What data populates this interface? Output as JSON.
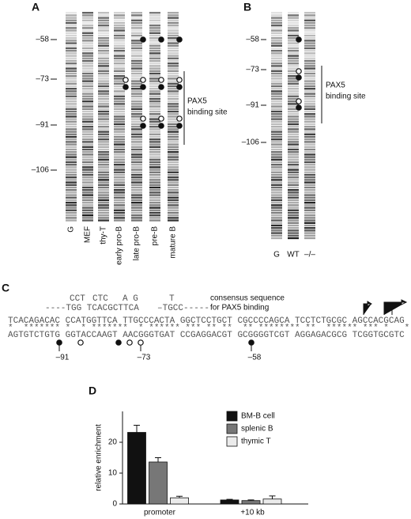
{
  "panel_a": {
    "label": "A",
    "markers": [
      "–58",
      "–73",
      "–91",
      "–106"
    ],
    "lanes": [
      "G",
      "MEF",
      "thy-T",
      "early pro-B",
      "late pro-B",
      "pre-B",
      "mature B"
    ],
    "annotation": [
      "PAX5",
      "binding site"
    ]
  },
  "panel_b": {
    "label": "B",
    "markers": [
      "–58",
      "–73",
      "–91",
      "–106"
    ],
    "lanes": [
      "G",
      "WT",
      "–/–"
    ],
    "annotation": [
      "PAX5",
      "binding site"
    ]
  },
  "panel_c": {
    "label": "C",
    "consensus_top": [
      "CCT",
      "CTC",
      "A G",
      "T"
    ],
    "consensus_bottom": [
      "----TGG TCACGCTTCA",
      "–TGCC-----"
    ],
    "consensus_label": [
      "consensus sequence",
      "for PAX5 binding"
    ],
    "top_strand": "TCACAGACAC CCATGGTTCA TTGCCCACTA GGCTCCTGCT CGCCCCAGCA TCCTCTGCGC AGCCACGCAG",
    "stars": "*  ******* *  * *******  * ****** *** ** **  ** ******** **  ****** *** *   *",
    "bottom_strand": "AGTGTCTGTG GGTACCAAGT AACGGGTGAT CCGAGGACGT GCGGGGTCGT AGGAGACGCG TCGGTGCGTC",
    "positions": [
      "–91",
      "–73",
      "–58"
    ]
  },
  "panel_d": {
    "label": "D"
  },
  "chart_data": {
    "type": "bar",
    "categories": [
      "promoter",
      "+10 kb"
    ],
    "y_label": "relative enrichment",
    "series": [
      {
        "name": "BM-B cell",
        "color": "#111111",
        "values": [
          23.2,
          1.3
        ],
        "errors": [
          2.3,
          0.2
        ]
      },
      {
        "name": "splenic B",
        "color": "#777777",
        "values": [
          13.6,
          1.1
        ],
        "errors": [
          1.4,
          0.2
        ]
      },
      {
        "name": "thymic T",
        "color": "#ebebeb",
        "values": [
          2.0,
          1.6
        ],
        "errors": [
          0.5,
          1.0
        ]
      }
    ],
    "ylim": [
      0,
      30
    ],
    "yticks": [
      0,
      10,
      20
    ],
    "legend": "upper right"
  }
}
